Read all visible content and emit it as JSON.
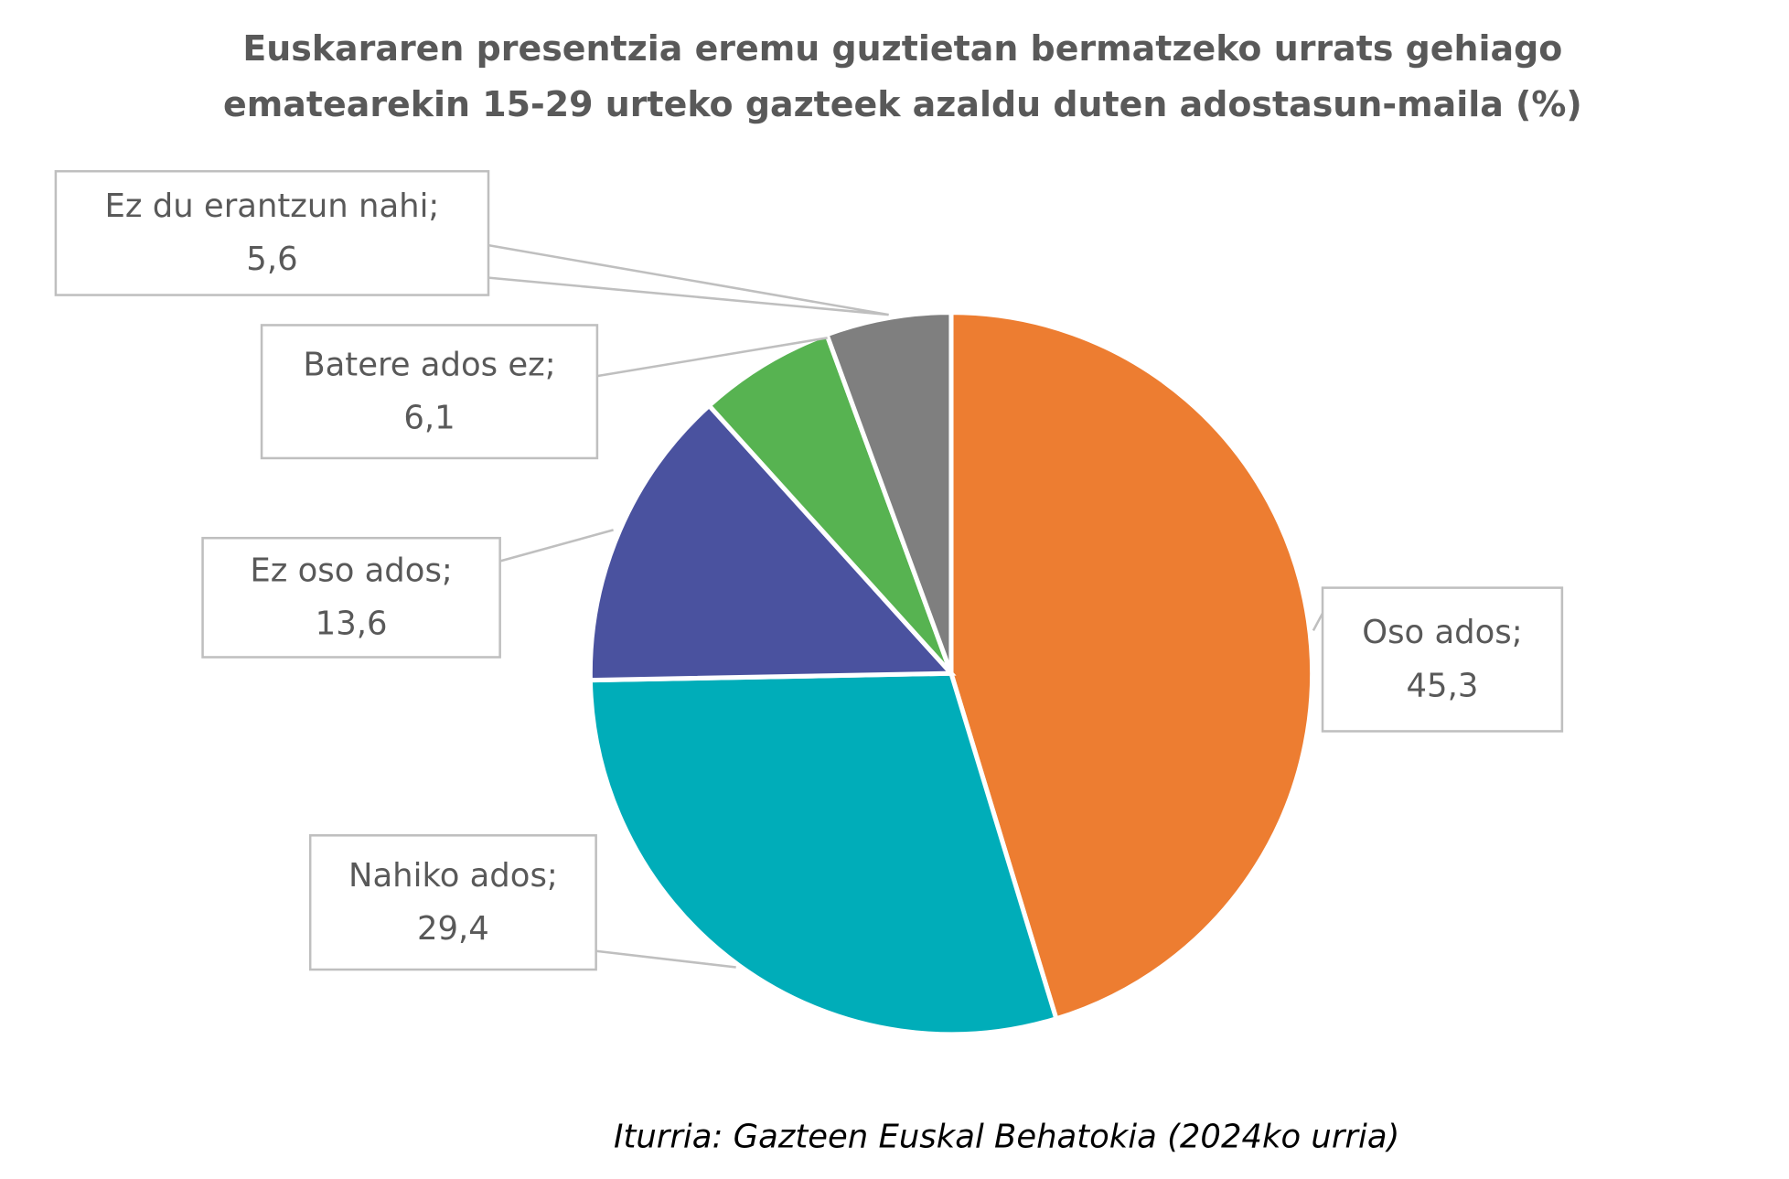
{
  "chart_data": {
    "type": "pie",
    "title": [
      "Euskararen presentzia eremu guztietan bermatzeko urrats gehiago",
      "ematearekin 15-29 urteko gazteek azaldu duten adostasun-maila (%)"
    ],
    "categories": [
      "Oso ados;",
      "Nahiko ados;",
      "Ez oso ados;",
      "Batere ados ez;",
      "Ez du erantzun nahi;"
    ],
    "values": [
      45.3,
      29.4,
      13.6,
      6.1,
      5.6
    ],
    "value_labels": [
      "45,3",
      "29,4",
      "13,6",
      "6,1",
      "5,6"
    ],
    "colors": [
      "#ED7D31",
      "#00ADB9",
      "#4A529F",
      "#57B351",
      "#7F7F7F"
    ],
    "source": "Iturria: Gazteen Euskal Behatokia (2024ko urria)"
  }
}
